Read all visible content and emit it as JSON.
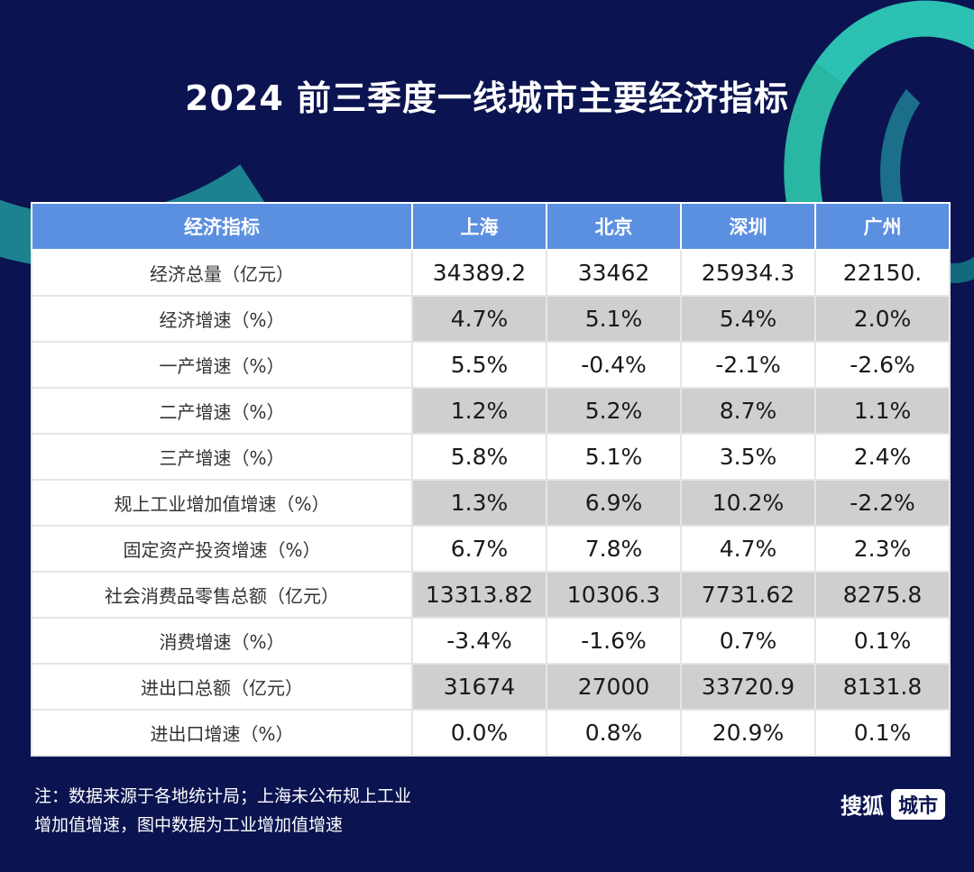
{
  "title": "2024 前三季度一线城市主要经济指标",
  "chart_data": {
    "type": "table",
    "columns": [
      "经济指标",
      "上海",
      "北京",
      "深圳",
      "广州"
    ],
    "rows": [
      {
        "label": "经济总量（亿元）",
        "values": [
          "34389.2",
          "33462",
          "25934.3",
          "22150."
        ],
        "shade": false
      },
      {
        "label": "经济增速（%）",
        "values": [
          "4.7%",
          "5.1%",
          "5.4%",
          "2.0%"
        ],
        "shade": true
      },
      {
        "label": "一产增速（%）",
        "values": [
          "5.5%",
          "-0.4%",
          "-2.1%",
          "-2.6%"
        ],
        "shade": false
      },
      {
        "label": "二产增速（%）",
        "values": [
          "1.2%",
          "5.2%",
          "8.7%",
          "1.1%"
        ],
        "shade": true
      },
      {
        "label": "三产增速（%）",
        "values": [
          "5.8%",
          "5.1%",
          "3.5%",
          "2.4%"
        ],
        "shade": false
      },
      {
        "label": "规上工业增加值增速（%）",
        "values": [
          "1.3%",
          "6.9%",
          "10.2%",
          "-2.2%"
        ],
        "shade": true
      },
      {
        "label": "固定资产投资增速（%）",
        "values": [
          "6.7%",
          "7.8%",
          "4.7%",
          "2.3%"
        ],
        "shade": false
      },
      {
        "label": "社会消费品零售总额（亿元）",
        "values": [
          "13313.82",
          "10306.3",
          "7731.62",
          "8275.8"
        ],
        "shade": true
      },
      {
        "label": "消费增速（%）",
        "values": [
          "-3.4%",
          "-1.6%",
          "0.7%",
          "0.1%"
        ],
        "shade": false
      },
      {
        "label": "进出口总额（亿元）",
        "values": [
          "31674",
          "27000",
          "33720.9",
          "8131.8"
        ],
        "shade": true
      },
      {
        "label": "进出口增速（%）",
        "values": [
          "0.0%",
          "0.8%",
          "20.9%",
          "0.1%"
        ],
        "shade": false
      }
    ]
  },
  "note": {
    "line1": "注：数据来源于各地统计局；上海未公布规上工业",
    "line2": "增加值增速，图中数据为工业增加值增速"
  },
  "logo": {
    "brand": "搜狐",
    "tag": "城市"
  },
  "colors": {
    "background": "#0b1450",
    "header": "#5b8fe0",
    "shade": "#cfcfcf",
    "accent": "#2cc1b2"
  }
}
